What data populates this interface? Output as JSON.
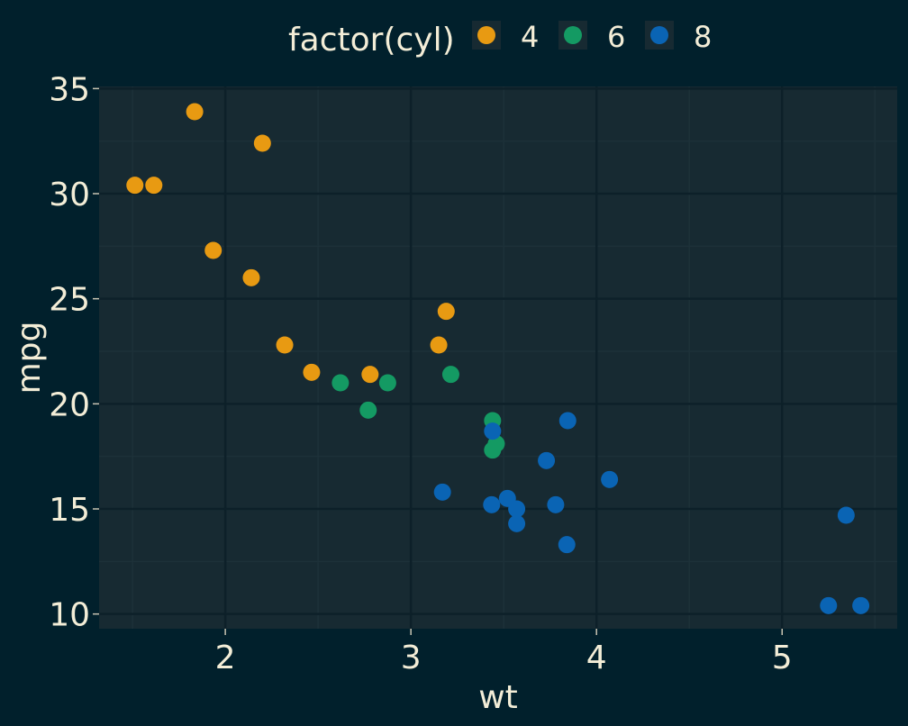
{
  "chart_data": {
    "type": "scatter",
    "xlabel": "wt",
    "ylabel": "mpg",
    "xlim": [
      1.32,
      5.62
    ],
    "ylim": [
      9.3,
      35.1
    ],
    "xticks": [
      2,
      3,
      4,
      5
    ],
    "yticks": [
      10,
      15,
      20,
      25,
      30,
      35
    ],
    "grid": true,
    "legend": {
      "title": "factor(cyl)",
      "placement": "top"
    },
    "series": [
      {
        "name": "4",
        "color": "#E89A12",
        "x": [
          2.32,
          3.19,
          3.15,
          2.2,
          1.615,
          1.835,
          2.465,
          1.935,
          2.14,
          1.513,
          2.78
        ],
        "y": [
          22.8,
          24.4,
          22.8,
          32.4,
          30.4,
          33.9,
          21.5,
          27.3,
          26.0,
          30.4,
          21.4
        ]
      },
      {
        "name": "6",
        "color": "#149A63",
        "x": [
          2.62,
          2.875,
          3.215,
          3.46,
          3.44,
          3.44,
          2.77
        ],
        "y": [
          21.0,
          21.0,
          21.4,
          18.1,
          19.2,
          17.8,
          19.7
        ]
      },
      {
        "name": "8",
        "color": "#0A64B4",
        "x": [
          3.44,
          3.57,
          4.07,
          3.73,
          3.78,
          5.25,
          5.424,
          5.345,
          3.52,
          3.435,
          3.84,
          3.845,
          3.17,
          3.57
        ],
        "y": [
          18.7,
          14.3,
          16.4,
          17.3,
          15.2,
          10.4,
          10.4,
          14.7,
          15.5,
          15.2,
          13.3,
          19.2,
          15.8,
          15.0
        ]
      }
    ]
  }
}
